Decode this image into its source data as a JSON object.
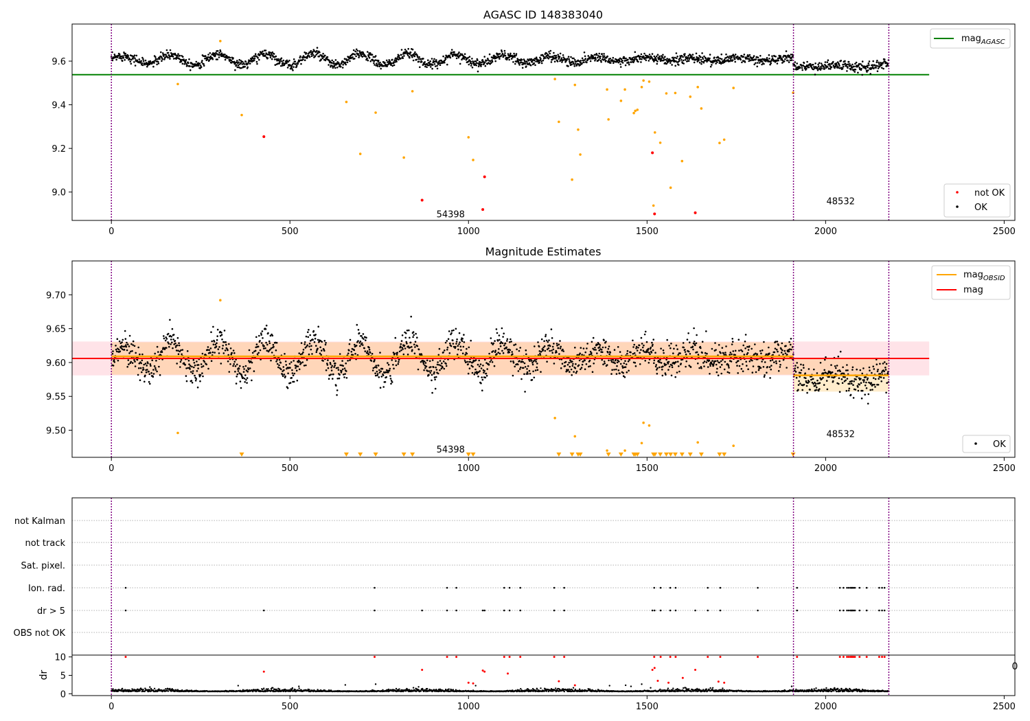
{
  "chart_data": [
    {
      "type": "scatter",
      "title": "AGASC ID 148383040",
      "xlabel": "",
      "ylabel": "",
      "xlim": [
        -110,
        2530
      ],
      "ylim": [
        8.87,
        9.77
      ],
      "xticks": [
        0,
        500,
        1000,
        1500,
        2000,
        2500
      ],
      "yticks": [
        9.0,
        9.2,
        9.4,
        9.6
      ],
      "ytick_format": 1,
      "legend_upper": [
        {
          "label": "mag",
          "sub": "AGASC",
          "kind": "line",
          "color": "#008000"
        }
      ],
      "legend_lower": [
        {
          "label": "not OK",
          "kind": "dot",
          "color": "#ff0000"
        },
        {
          "label": "OK",
          "kind": "dot",
          "color": "#000000"
        }
      ],
      "legend_placement": [
        "upper right",
        "lower right"
      ],
      "hlines": [
        {
          "y": 9.538,
          "x0": -110,
          "x1": 2290,
          "color": "#008000"
        }
      ],
      "vlines": [
        0,
        1910,
        2177
      ],
      "obsid_labels": [
        {
          "text": "54398",
          "x": 950,
          "y": 8.9
        },
        {
          "text": "48532",
          "x": 2042,
          "y": 8.96
        }
      ],
      "ok_series": {
        "name": "OK",
        "color": "#000000",
        "x_range": [
          0,
          2177
        ],
        "segments": [
          {
            "x0": 0,
            "x1": 1910,
            "mean": 9.608,
            "amplitude": 0.027,
            "period": 133,
            "scatter": 0.011
          },
          {
            "x0": 1910,
            "x1": 2177,
            "mean": 9.577,
            "amplitude": 0.02,
            "period": 133,
            "scatter": 0.012
          }
        ]
      },
      "points_orange": [
        [
          186,
          9.495
        ],
        [
          305,
          9.692
        ],
        [
          365,
          9.353
        ],
        [
          658,
          9.413
        ],
        [
          697,
          9.175
        ],
        [
          740,
          9.364
        ],
        [
          819,
          9.158
        ],
        [
          843,
          9.462
        ],
        [
          1000,
          9.251
        ],
        [
          1013,
          9.147
        ],
        [
          1242,
          9.518
        ],
        [
          1253,
          9.322
        ],
        [
          1290,
          9.057
        ],
        [
          1298,
          9.491
        ],
        [
          1307,
          9.286
        ],
        [
          1313,
          9.172
        ],
        [
          1388,
          9.47
        ],
        [
          1392,
          9.333
        ],
        [
          1427,
          9.418
        ],
        [
          1438,
          9.47
        ],
        [
          1463,
          9.362
        ],
        [
          1467,
          9.372
        ],
        [
          1473,
          9.377
        ],
        [
          1485,
          9.481
        ],
        [
          1490,
          9.511
        ],
        [
          1506,
          9.506
        ],
        [
          1518,
          8.938
        ],
        [
          1522,
          9.273
        ],
        [
          1537,
          9.226
        ],
        [
          1554,
          9.452
        ],
        [
          1566,
          9.02
        ],
        [
          1579,
          9.454
        ],
        [
          1598,
          9.142
        ],
        [
          1621,
          9.437
        ],
        [
          1642,
          9.481
        ],
        [
          1652,
          9.383
        ],
        [
          1703,
          9.225
        ],
        [
          1716,
          9.24
        ],
        [
          1742,
          9.477
        ],
        [
          1909,
          9.455
        ]
      ],
      "points_red": [
        [
          427,
          9.254
        ],
        [
          870,
          8.963
        ],
        [
          1040,
          8.92
        ],
        [
          1045,
          9.07
        ],
        [
          1515,
          9.18
        ],
        [
          1521,
          8.9
        ],
        [
          1635,
          8.905
        ]
      ]
    },
    {
      "type": "scatter",
      "title": "Magnitude Estimates",
      "xlabel": "",
      "ylabel": "",
      "xlim": [
        -110,
        2530
      ],
      "ylim": [
        9.46,
        9.75
      ],
      "xticks": [
        0,
        500,
        1000,
        1500,
        2000,
        2500
      ],
      "yticks": [
        9.5,
        9.55,
        9.6,
        9.65,
        9.7
      ],
      "ytick_format": 2,
      "legend_upper": [
        {
          "label": "mag",
          "sub": "OBSID",
          "kind": "line",
          "color": "#ffa500"
        },
        {
          "label": "mag",
          "kind": "line",
          "color": "#ff0000"
        }
      ],
      "legend_lower": [
        {
          "label": "OK",
          "kind": "dot",
          "color": "#000000"
        }
      ],
      "legend_placement": [
        "upper right",
        "lower right"
      ],
      "mag_line": {
        "y": 9.606,
        "band": [
          9.581,
          9.631
        ],
        "x0": -110,
        "x1": 2290,
        "color": "#ff0000",
        "fill": "#ffc0cb"
      },
      "obsid_mags": [
        {
          "x0": 0,
          "x1": 1910,
          "y": 9.609,
          "band": [
            9.582,
            9.63
          ]
        },
        {
          "x0": 1910,
          "x1": 2177,
          "y": 9.581,
          "band": [
            9.557,
            9.605
          ]
        }
      ],
      "vlines": [
        0,
        1910,
        2177
      ],
      "obsid_labels": [
        {
          "text": "54398",
          "x": 950,
          "y": 9.472
        },
        {
          "text": "48532",
          "x": 2042,
          "y": 9.495
        }
      ],
      "points_orange": [
        [
          186,
          9.496
        ],
        [
          305,
          9.692
        ],
        [
          1242,
          9.518
        ],
        [
          1298,
          9.491
        ],
        [
          1388,
          9.47
        ],
        [
          1438,
          9.47
        ],
        [
          1490,
          9.511
        ],
        [
          1506,
          9.507
        ],
        [
          1485,
          9.481
        ],
        [
          1642,
          9.482
        ],
        [
          1742,
          9.477
        ]
      ],
      "below_limit_x": [
        365,
        658,
        697,
        740,
        819,
        843,
        1000,
        1013,
        1253,
        1290,
        1307,
        1313,
        1392,
        1427,
        1463,
        1467,
        1473,
        1518,
        1522,
        1537,
        1554,
        1566,
        1579,
        1598,
        1621,
        1652,
        1703,
        1716,
        1909
      ]
    },
    {
      "type": "scatter",
      "title": "",
      "xlim": [
        -110,
        2530
      ],
      "categories": [
        "not Kalman",
        "not track",
        "Sat. pixel.",
        "Ion. rad.",
        "dr > 5",
        "OBS not OK"
      ],
      "flags": {
        "Ion. rad.": [
          40,
          737,
          940,
          966,
          1100,
          1115,
          1145,
          1240,
          1268,
          1520,
          1538,
          1565,
          1580,
          1670,
          1705,
          1810,
          1920,
          2040,
          2050,
          2060,
          2065,
          2070,
          2072,
          2075,
          2078,
          2082,
          2095,
          2115,
          2150,
          2158,
          2165
        ],
        "dr > 5": [
          40,
          427,
          737,
          870,
          940,
          966,
          1040,
          1045,
          1100,
          1115,
          1145,
          1240,
          1268,
          1515,
          1521,
          1538,
          1565,
          1580,
          1635,
          1670,
          1705,
          1810,
          1920,
          2040,
          2050,
          2060,
          2065,
          2070,
          2072,
          2075,
          2078,
          2082,
          2095,
          2115,
          2150,
          2158,
          2165
        ]
      },
      "vlines": [
        0,
        1910,
        2177
      ]
    },
    {
      "type": "scatter",
      "title": "",
      "xlabel": "",
      "ylabel": "dr",
      "xlim": [
        -110,
        2530
      ],
      "ylim": [
        -0.5,
        10.5
      ],
      "xticks": [
        0,
        500,
        1000,
        1500,
        2000,
        2500
      ],
      "yticks": [
        0,
        5,
        10
      ],
      "edge_label": "0",
      "baseline": {
        "x0": 0,
        "x1": 2177,
        "mean": 0.6,
        "scatter": 0.35
      },
      "points_red": [
        [
          40,
          10
        ],
        [
          427,
          6
        ],
        [
          737,
          10
        ],
        [
          870,
          6.5
        ],
        [
          940,
          10
        ],
        [
          966,
          10
        ],
        [
          1040,
          6.3
        ],
        [
          1045,
          6
        ],
        [
          1110,
          5.5
        ],
        [
          1100,
          10
        ],
        [
          1115,
          10
        ],
        [
          1145,
          10
        ],
        [
          1240,
          10
        ],
        [
          1268,
          10
        ],
        [
          1515,
          6.5
        ],
        [
          1521,
          7
        ],
        [
          1520,
          10
        ],
        [
          1538,
          10
        ],
        [
          1565,
          10
        ],
        [
          1580,
          10
        ],
        [
          1635,
          6.5
        ],
        [
          1670,
          10
        ],
        [
          1705,
          10
        ],
        [
          1810,
          10
        ],
        [
          1920,
          10
        ],
        [
          2040,
          10
        ],
        [
          2050,
          10
        ],
        [
          2060,
          10
        ],
        [
          2065,
          10
        ],
        [
          2070,
          10
        ],
        [
          2072,
          10
        ],
        [
          2075,
          10
        ],
        [
          2078,
          10
        ],
        [
          2082,
          10
        ],
        [
          2095,
          10
        ],
        [
          2115,
          10
        ],
        [
          2150,
          10
        ],
        [
          2158,
          10
        ],
        [
          2165,
          10
        ],
        [
          1000,
          3
        ],
        [
          1013,
          2.8
        ],
        [
          1253,
          3.4
        ],
        [
          1298,
          2.3
        ],
        [
          1530,
          3.5
        ],
        [
          1560,
          3
        ],
        [
          1600,
          4.3
        ],
        [
          1700,
          3.3
        ],
        [
          1716,
          3
        ]
      ],
      "vlines": [
        0,
        1910,
        2177
      ]
    }
  ]
}
